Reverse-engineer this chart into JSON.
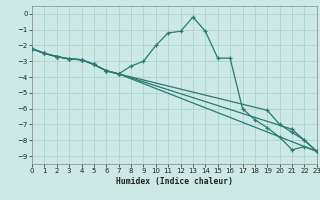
{
  "xlabel": "Humidex (Indice chaleur)",
  "background_color": "#cce9e5",
  "grid_color": "#aed4ce",
  "line_color": "#2a7a72",
  "xlim": [
    0,
    23
  ],
  "ylim": [
    -9.5,
    0.5
  ],
  "yticks": [
    0,
    -1,
    -2,
    -3,
    -4,
    -5,
    -6,
    -7,
    -8,
    -9
  ],
  "xticks": [
    0,
    1,
    2,
    3,
    4,
    5,
    6,
    7,
    8,
    9,
    10,
    11,
    12,
    13,
    14,
    15,
    16,
    17,
    18,
    19,
    20,
    21,
    22,
    23
  ],
  "lines": [
    {
      "x": [
        0,
        1,
        2,
        3,
        4,
        5,
        6,
        7,
        8,
        9,
        10,
        11,
        12,
        13,
        14,
        15,
        16,
        17,
        18,
        19,
        20,
        21,
        22,
        23
      ],
      "y": [
        -2.2,
        -2.5,
        -2.7,
        -2.85,
        -2.9,
        -3.2,
        -3.6,
        -3.8,
        -3.3,
        -3.0,
        -2.0,
        -1.2,
        -1.1,
        -0.2,
        -1.1,
        -2.8,
        -2.8,
        -6.0,
        -6.7,
        -7.2,
        -7.8,
        -8.6,
        -8.4,
        -8.7
      ]
    },
    {
      "x": [
        0,
        1,
        2,
        3,
        4,
        5,
        6,
        7,
        23
      ],
      "y": [
        -2.2,
        -2.5,
        -2.7,
        -2.85,
        -2.9,
        -3.2,
        -3.6,
        -3.8,
        -8.7
      ]
    },
    {
      "x": [
        0,
        1,
        2,
        3,
        4,
        5,
        6,
        7,
        21,
        22,
        23
      ],
      "y": [
        -2.2,
        -2.5,
        -2.7,
        -2.85,
        -2.9,
        -3.2,
        -3.6,
        -3.8,
        -7.3,
        -8.0,
        -8.7
      ]
    },
    {
      "x": [
        0,
        1,
        2,
        3,
        4,
        5,
        6,
        7,
        19,
        20,
        21,
        22,
        23
      ],
      "y": [
        -2.2,
        -2.5,
        -2.7,
        -2.85,
        -2.9,
        -3.2,
        -3.6,
        -3.8,
        -6.1,
        -7.0,
        -7.5,
        -8.0,
        -8.7
      ]
    }
  ]
}
